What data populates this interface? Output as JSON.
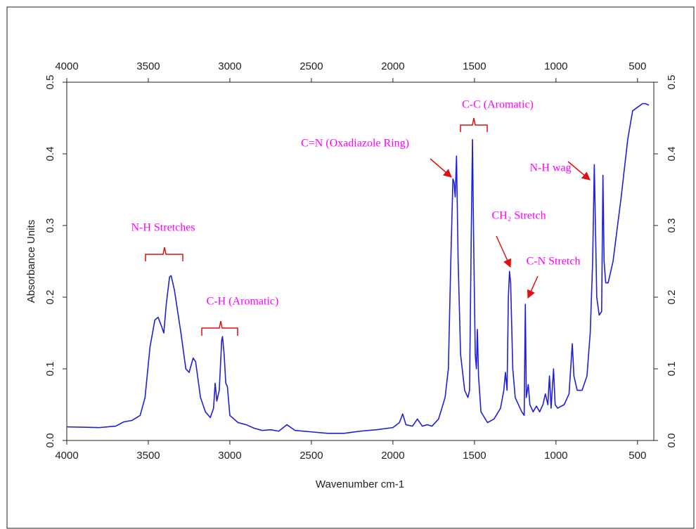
{
  "chart_data": {
    "type": "line",
    "xlabel": "Wavenumber cm-1",
    "ylabel": "Absorbance Units",
    "color": "#1f1fd8",
    "xlim": [
      4000,
      400
    ],
    "ylim": [
      0,
      0.5
    ],
    "xticks": [
      4000,
      3500,
      3000,
      2500,
      2000,
      1500,
      1000,
      500
    ],
    "yticks": [
      {
        "value": 0,
        "label": "0.0"
      },
      0.1,
      0.2,
      0.3,
      0.4,
      0.5
    ],
    "annotations": [
      "N-H Stretches",
      "C-H (Aromatic)",
      "C=N (Oxadiazole Ring)",
      "C-C (Aromatic)",
      "CH₂ Stretch",
      "C-N Stretch",
      "N-H wag"
    ],
    "x": [
      4000,
      3800,
      3700,
      3650,
      3600,
      3550,
      3520,
      3490,
      3460,
      3440,
      3420,
      3405,
      3390,
      3370,
      3360,
      3340,
      3300,
      3270,
      3250,
      3225,
      3210,
      3180,
      3150,
      3120,
      3100,
      3090,
      3080,
      3065,
      3050,
      3045,
      3035,
      3025,
      3015,
      3000,
      2950,
      2900,
      2850,
      2800,
      2750,
      2700,
      2650,
      2600,
      2500,
      2400,
      2300,
      2200,
      2100,
      2000,
      1960,
      1940,
      1920,
      1880,
      1850,
      1820,
      1790,
      1760,
      1720,
      1700,
      1680,
      1660,
      1645,
      1632,
      1625,
      1618,
      1610,
      1600,
      1585,
      1560,
      1540,
      1530,
      1520,
      1512,
      1505,
      1495,
      1488,
      1482,
      1475,
      1460,
      1420,
      1380,
      1340,
      1320,
      1310,
      1300,
      1292,
      1285,
      1278,
      1265,
      1250,
      1210,
      1195,
      1188,
      1182,
      1170,
      1160,
      1140,
      1120,
      1100,
      1080,
      1065,
      1050,
      1040,
      1030,
      1015,
      1005,
      990,
      950,
      920,
      900,
      890,
      870,
      840,
      810,
      790,
      775,
      765,
      758,
      750,
      735,
      720,
      712,
      705,
      695,
      680,
      650,
      600,
      560,
      530,
      500,
      470,
      450,
      430
    ],
    "values": [
      0.019,
      0.018,
      0.02,
      0.026,
      0.028,
      0.035,
      0.06,
      0.13,
      0.168,
      0.172,
      0.16,
      0.15,
      0.19,
      0.228,
      0.23,
      0.21,
      0.15,
      0.1,
      0.095,
      0.115,
      0.11,
      0.06,
      0.04,
      0.032,
      0.045,
      0.08,
      0.055,
      0.07,
      0.14,
      0.145,
      0.12,
      0.08,
      0.075,
      0.035,
      0.025,
      0.022,
      0.017,
      0.014,
      0.015,
      0.013,
      0.022,
      0.014,
      0.012,
      0.01,
      0.01,
      0.013,
      0.015,
      0.018,
      0.025,
      0.037,
      0.022,
      0.02,
      0.03,
      0.02,
      0.022,
      0.02,
      0.03,
      0.045,
      0.06,
      0.1,
      0.25,
      0.365,
      0.36,
      0.34,
      0.397,
      0.25,
      0.12,
      0.07,
      0.06,
      0.07,
      0.28,
      0.42,
      0.28,
      0.12,
      0.1,
      0.155,
      0.09,
      0.04,
      0.025,
      0.03,
      0.045,
      0.07,
      0.095,
      0.07,
      0.2,
      0.236,
      0.22,
      0.1,
      0.06,
      0.04,
      0.035,
      0.19,
      0.06,
      0.078,
      0.05,
      0.04,
      0.048,
      0.04,
      0.05,
      0.065,
      0.05,
      0.09,
      0.045,
      0.1,
      0.05,
      0.045,
      0.05,
      0.065,
      0.135,
      0.09,
      0.07,
      0.07,
      0.09,
      0.15,
      0.25,
      0.385,
      0.3,
      0.2,
      0.175,
      0.18,
      0.37,
      0.25,
      0.22,
      0.22,
      0.25,
      0.34,
      0.42,
      0.46,
      0.465,
      0.47,
      0.47,
      0.468
    ]
  }
}
